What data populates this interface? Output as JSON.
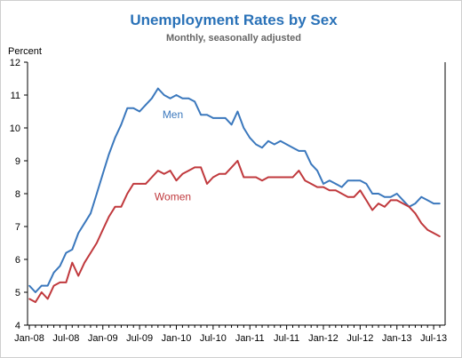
{
  "chart_data": {
    "type": "line",
    "title": "Unemployment Rates by Sex",
    "subtitle": "Monthly, seasonally adjusted",
    "ylabel": "Percent",
    "xlabel": "",
    "ylim": [
      4,
      12
    ],
    "yticks": [
      4,
      5,
      6,
      7,
      8,
      9,
      10,
      11,
      12
    ],
    "xticks": [
      "Jan-08",
      "Jul-08",
      "Jan-09",
      "Jul-09",
      "Jan-10",
      "Jul-10",
      "Jan-11",
      "Jul-11",
      "Jan-12",
      "Jul-12",
      "Jan-13",
      "Jul-13"
    ],
    "months": 68,
    "colors": {
      "men": "#3b78bd",
      "women": "#c0393d",
      "title": "#2a72b8",
      "subtitle": "#666666"
    },
    "series": [
      {
        "name": "Men",
        "values": [
          5.2,
          5.0,
          5.2,
          5.2,
          5.6,
          5.8,
          6.2,
          6.3,
          6.8,
          7.1,
          7.4,
          8.0,
          8.6,
          9.2,
          9.7,
          10.1,
          10.6,
          10.6,
          10.5,
          10.7,
          10.9,
          11.2,
          11.0,
          10.9,
          11.0,
          10.9,
          10.9,
          10.8,
          10.4,
          10.4,
          10.3,
          10.3,
          10.3,
          10.1,
          10.5,
          10.0,
          9.7,
          9.5,
          9.4,
          9.6,
          9.5,
          9.6,
          9.5,
          9.4,
          9.3,
          9.3,
          8.9,
          8.7,
          8.3,
          8.4,
          8.3,
          8.2,
          8.4,
          8.4,
          8.4,
          8.3,
          8.0,
          8.0,
          7.9,
          7.9,
          8.0,
          7.8,
          7.6,
          7.7,
          7.9,
          7.8,
          7.7,
          7.7
        ]
      },
      {
        "name": "Women",
        "values": [
          4.8,
          4.7,
          5.0,
          4.8,
          5.2,
          5.3,
          5.3,
          5.9,
          5.5,
          5.9,
          6.2,
          6.5,
          6.9,
          7.3,
          7.6,
          7.6,
          8.0,
          8.3,
          8.3,
          8.3,
          8.5,
          8.7,
          8.6,
          8.7,
          8.4,
          8.6,
          8.7,
          8.8,
          8.8,
          8.3,
          8.5,
          8.6,
          8.6,
          8.8,
          9.0,
          8.5,
          8.5,
          8.5,
          8.4,
          8.5,
          8.5,
          8.5,
          8.5,
          8.5,
          8.7,
          8.4,
          8.3,
          8.2,
          8.2,
          8.1,
          8.1,
          8.0,
          7.9,
          7.9,
          8.1,
          7.8,
          7.5,
          7.7,
          7.6,
          7.8,
          7.8,
          7.7,
          7.6,
          7.4,
          7.1,
          6.9,
          6.8,
          6.7
        ]
      }
    ]
  }
}
